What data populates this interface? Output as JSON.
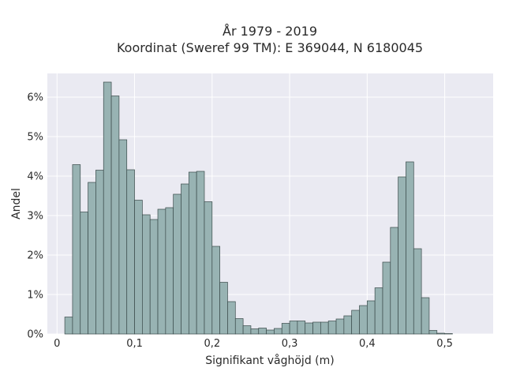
{
  "chart_data": {
    "type": "bar",
    "title_line1": "År 1979 - 2019",
    "title_line2": "Koordinat (Sweref 99 TM): E 369044, N 6180045",
    "xlabel": "Signifikant våghöjd (m)",
    "ylabel": "Andel",
    "xlim": [
      -0.0125,
      0.5625
    ],
    "ylim": [
      0,
      0.066
    ],
    "grid": true,
    "bar_color": "#98b3b3",
    "bar_edge": "#3a4a4a",
    "plot_bg": "#eaeaf2",
    "x_ticks": [
      0,
      0.1,
      0.2,
      0.3,
      0.4,
      0.5
    ],
    "x_tick_labels": [
      "0",
      "0,1",
      "0,2",
      "0,3",
      "0,4",
      "0,5"
    ],
    "y_ticks": [
      0,
      0.01,
      0.02,
      0.03,
      0.04,
      0.05,
      0.06
    ],
    "y_tick_labels": [
      "0%",
      "1%",
      "2%",
      "3%",
      "4%",
      "5%",
      "6%"
    ],
    "bin_width": 0.01,
    "bins_start": [
      0.01,
      0.02,
      0.03,
      0.04,
      0.05,
      0.06,
      0.07,
      0.08,
      0.09,
      0.1,
      0.11,
      0.12,
      0.13,
      0.14,
      0.15,
      0.16,
      0.17,
      0.18,
      0.19,
      0.2,
      0.21,
      0.22,
      0.23,
      0.24,
      0.25,
      0.26,
      0.27,
      0.28,
      0.29,
      0.3,
      0.31,
      0.32,
      0.33,
      0.34,
      0.35,
      0.36,
      0.37,
      0.38,
      0.39,
      0.4,
      0.41,
      0.42,
      0.43,
      0.44,
      0.45,
      0.46,
      0.47,
      0.48,
      0.49,
      0.5,
      0.51
    ],
    "values": [
      0.0043,
      0.0429,
      0.0309,
      0.0384,
      0.0415,
      0.0638,
      0.0603,
      0.0492,
      0.0416,
      0.0339,
      0.0302,
      0.029,
      0.0316,
      0.032,
      0.0354,
      0.038,
      0.041,
      0.0412,
      0.0335,
      0.0222,
      0.0131,
      0.0082,
      0.0039,
      0.0021,
      0.0013,
      0.0015,
      0.001,
      0.0014,
      0.0027,
      0.0033,
      0.0033,
      0.0028,
      0.003,
      0.003,
      0.0033,
      0.0038,
      0.0046,
      0.006,
      0.0072,
      0.0084,
      0.0117,
      0.0182,
      0.027,
      0.0398,
      0.0436,
      0.0216,
      0.0092,
      0.0009,
      0.0002,
      0.0001,
      0.0
    ]
  }
}
